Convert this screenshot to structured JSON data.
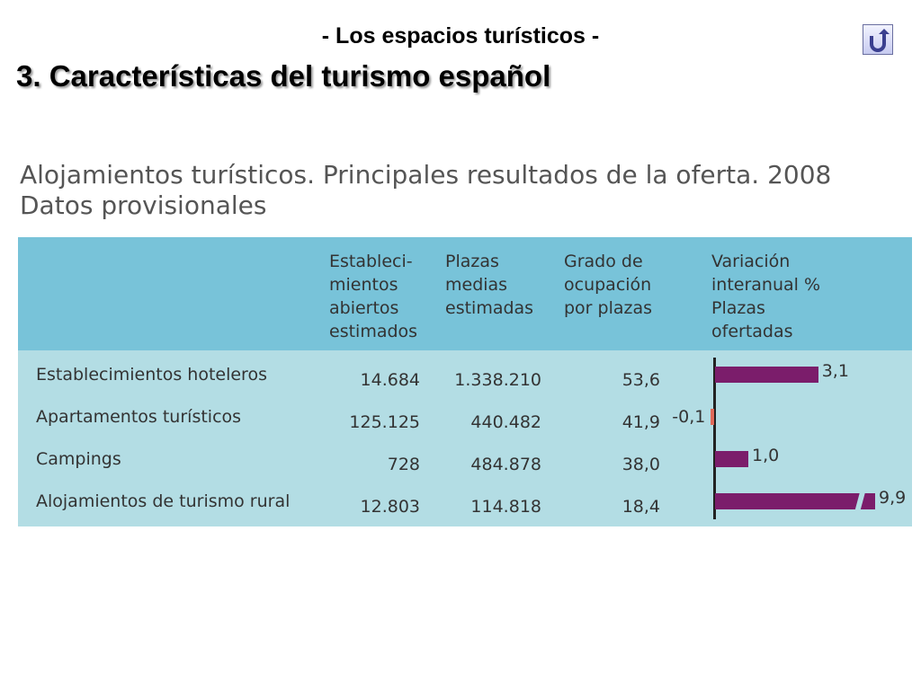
{
  "header": {
    "subtitle": "- Los espacios turísticos -",
    "title": "3. Características del turismo español",
    "back_icon": "u-turn-back-icon"
  },
  "table": {
    "title_line1": "Alojamientos turísticos. Principales resultados de la oferta. 2008",
    "title_line2": "Datos provisionales",
    "columns": [
      "Estableci-\nmientos\nabiertos\nestimados",
      "Plazas\nmedias\nestimadas",
      "Grado de\nocupación\npor plazas",
      "Variación\ninteranual %\nPlazas\nofertadas"
    ],
    "rows": [
      {
        "label": "Establecimientos hoteleros",
        "establecimientos": "14.684",
        "plazas": "1.338.210",
        "ocupacion": "53,6",
        "variacion": "3,1",
        "variacion_value": 3.1
      },
      {
        "label": "Apartamentos turísticos",
        "establecimientos": "125.125",
        "plazas": "440.482",
        "ocupacion": "41,9",
        "variacion": "-0,1",
        "variacion_value": -0.1
      },
      {
        "label": "Campings",
        "establecimientos": "728",
        "plazas": "484.878",
        "ocupacion": "38,0",
        "variacion": "1,0",
        "variacion_value": 1.0
      },
      {
        "label": "Alojamientos de turismo rural",
        "establecimientos": "12.803",
        "plazas": "114.818",
        "ocupacion": "18,4",
        "variacion": "9,9",
        "variacion_value": 9.9
      }
    ],
    "colors": {
      "header_bg": "#78c3d9",
      "body_bg": "#b3dde4",
      "bar_positive": "#7b1d6b",
      "bar_negative": "#e06a5a"
    }
  }
}
